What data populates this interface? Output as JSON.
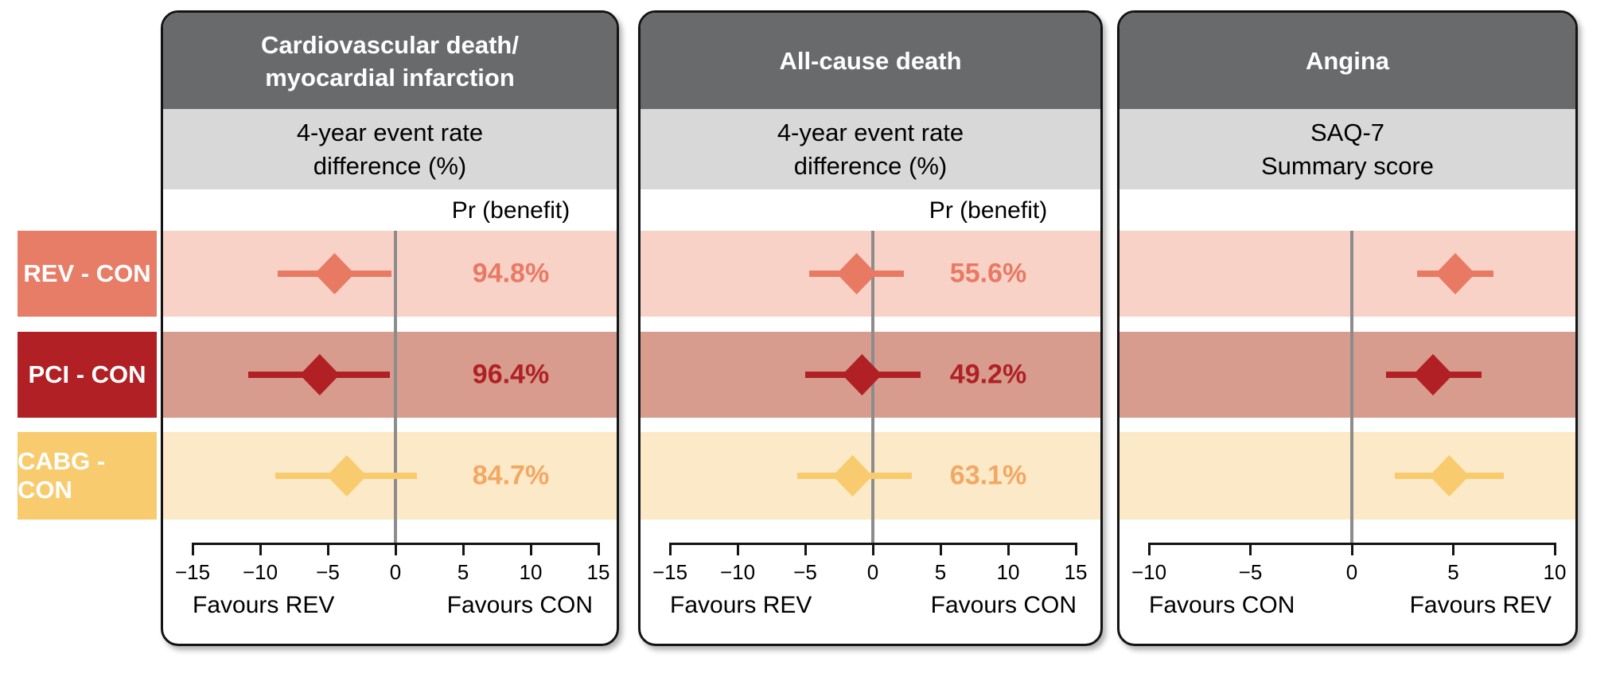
{
  "theme": {
    "header_bg": "#696a6c",
    "subheader_bg": "#d8d8d8",
    "zero_line_color": "#8c8c8c",
    "axis_color": "#141414",
    "background": "#ffffff"
  },
  "groups": [
    {
      "label": "REV - CON",
      "box_color": "#e87d67",
      "band_color": "#f9d2c7",
      "marker_color": "#e87a64",
      "value_color": "#e87a64"
    },
    {
      "label": "PCI - CON",
      "box_color": "#b02025",
      "band_color": "#d79c8d",
      "marker_color": "#b02025",
      "value_color": "#b02025"
    },
    {
      "label": "CABG - CON",
      "box_color": "#f8cb6e",
      "band_color": "#fce9c7",
      "marker_color": "#f8cb6e",
      "value_color": "#f2a865"
    }
  ],
  "chart_data": [
    {
      "type": "forest",
      "title_lines": [
        "Cardiovascular death/",
        "myocardial infarction"
      ],
      "subtitle_lines": [
        "4-year event rate",
        "difference (%)"
      ],
      "column_header": "Pr (benefit)",
      "axis": {
        "min": -15,
        "max": 15,
        "ticks": [
          -15,
          -10,
          -5,
          0,
          5,
          10,
          15
        ],
        "tick_labels": [
          "−15",
          "−10",
          "−5",
          "0",
          "5",
          "10",
          "15"
        ],
        "left_label": "Favours REV",
        "right_label": "Favours CON",
        "zero_reference": 0
      },
      "rows": [
        {
          "group": "REV - CON",
          "estimate": -4.5,
          "ci": [
            -8.7,
            -0.3
          ],
          "pr_label": "94.8%"
        },
        {
          "group": "PCI - CON",
          "estimate": -5.6,
          "ci": [
            -10.9,
            -0.4
          ],
          "pr_label": "96.4%"
        },
        {
          "group": "CABG - CON",
          "estimate": -3.6,
          "ci": [
            -8.9,
            1.6
          ],
          "pr_label": "84.7%"
        }
      ]
    },
    {
      "type": "forest",
      "title_lines": [
        "All-cause death"
      ],
      "subtitle_lines": [
        "4-year event rate",
        "difference (%)"
      ],
      "column_header": "Pr (benefit)",
      "axis": {
        "min": -15,
        "max": 15,
        "ticks": [
          -15,
          -10,
          -5,
          0,
          5,
          10,
          15
        ],
        "tick_labels": [
          "−15",
          "−10",
          "−5",
          "0",
          "5",
          "10",
          "15"
        ],
        "left_label": "Favours REV",
        "right_label": "Favours CON",
        "zero_reference": 0
      },
      "rows": [
        {
          "group": "REV - CON",
          "estimate": -1.2,
          "ci": [
            -4.7,
            2.3
          ],
          "pr_label": "55.6%"
        },
        {
          "group": "PCI - CON",
          "estimate": -0.8,
          "ci": [
            -5.0,
            3.5
          ],
          "pr_label": "49.2%"
        },
        {
          "group": "CABG - CON",
          "estimate": -1.5,
          "ci": [
            -5.6,
            2.9
          ],
          "pr_label": "63.1%"
        }
      ]
    },
    {
      "type": "forest",
      "title_lines": [
        "Angina"
      ],
      "subtitle_lines": [
        "SAQ-7",
        "Summary score"
      ],
      "column_header": "",
      "axis": {
        "min": -10,
        "max": 10,
        "ticks": [
          -10,
          -5,
          0,
          5,
          10
        ],
        "tick_labels": [
          "−10",
          "−5",
          "0",
          "5",
          "10"
        ],
        "left_label": "Favours CON",
        "right_label": "Favours REV",
        "zero_reference": 0
      },
      "rows": [
        {
          "group": "REV - CON",
          "estimate": 5.1,
          "ci": [
            3.2,
            7.0
          ]
        },
        {
          "group": "PCI - CON",
          "estimate": 4.0,
          "ci": [
            1.7,
            6.4
          ]
        },
        {
          "group": "CABG - CON",
          "estimate": 4.8,
          "ci": [
            2.1,
            7.5
          ]
        }
      ]
    }
  ]
}
